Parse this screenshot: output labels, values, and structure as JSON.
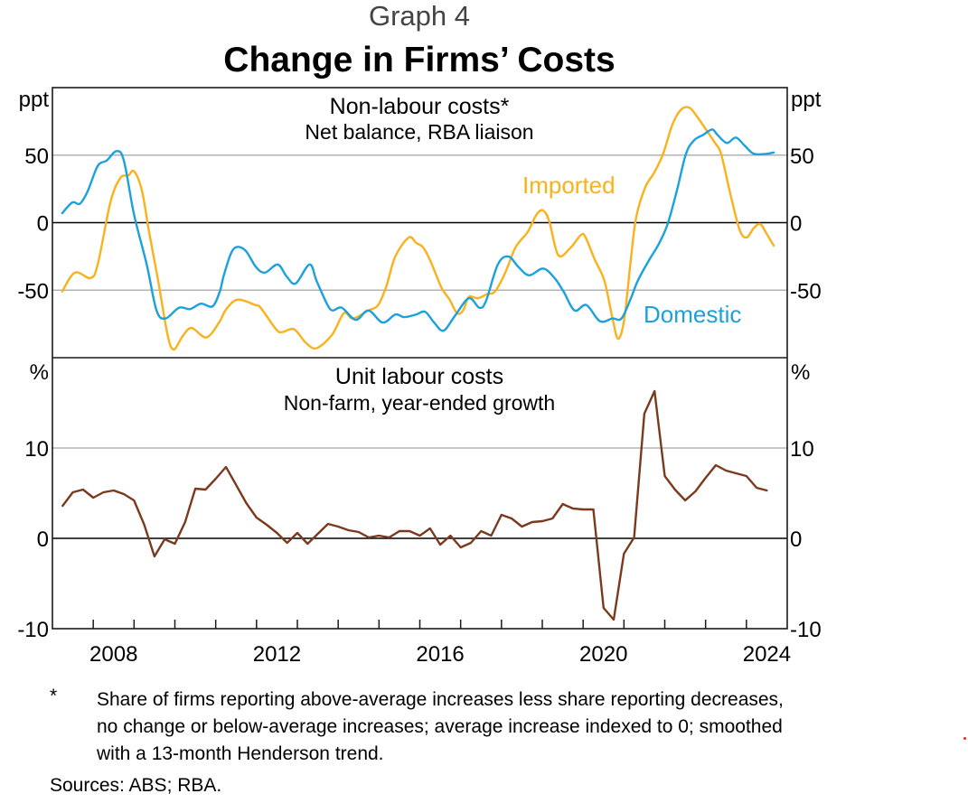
{
  "header": {
    "graph_number": "Graph 4",
    "title": "Change in Firms’ Costs"
  },
  "footnote": {
    "marker": "*",
    "text": "Share of firms reporting above-average increases less share reporting decreases, no change or below-average increases; average increase indexed to 0; smoothed with a 13-month Henderson trend."
  },
  "sources": "Sources: ABS; RBA.",
  "chart_data": [
    {
      "type": "line",
      "title": "Non-labour costs*",
      "subtitle": "Net balance, RBA liaison",
      "ylabel_left": "ppt",
      "ylabel_right": "ppt",
      "ylim": [
        -100,
        100
      ],
      "yticks": [
        50,
        0,
        -50
      ],
      "ytick_labels": [
        "50",
        "0",
        "-50"
      ],
      "xlim": [
        2007,
        2025
      ],
      "grid": true,
      "series": [
        {
          "name": "Imported",
          "color": "#f9b21b",
          "label_position": "upper-middle-right",
          "x": [
            2007.24,
            2007.55,
            2007.93,
            2008.11,
            2008.42,
            2008.66,
            2008.86,
            2009.0,
            2009.19,
            2009.37,
            2009.59,
            2009.82,
            2009.97,
            2010.19,
            2010.41,
            2010.77,
            2011.08,
            2011.26,
            2011.54,
            2011.97,
            2012.1,
            2012.48,
            2012.63,
            2012.92,
            2013.21,
            2013.47,
            2013.85,
            2014.14,
            2014.36,
            2014.74,
            2014.98,
            2015.18,
            2015.4,
            2015.73,
            2015.91,
            2016.07,
            2016.24,
            2016.53,
            2016.73,
            2016.91,
            2017.06,
            2017.2,
            2017.42,
            2017.64,
            2017.84,
            2018.08,
            2018.35,
            2018.64,
            2018.86,
            2019.02,
            2019.17,
            2019.39,
            2019.68,
            2019.95,
            2020.06,
            2020.28,
            2020.52,
            2020.72,
            2020.86,
            2021.01,
            2021.17,
            2021.3,
            2021.52,
            2021.74,
            2021.96,
            2022.19,
            2022.41,
            2022.61,
            2022.78,
            2023.01,
            2023.23,
            2023.38,
            2023.6,
            2023.83,
            2024.0,
            2024.18,
            2024.34,
            2024.49,
            2024.67
          ],
          "values": [
            -51,
            -37,
            -41,
            -31,
            15,
            33,
            35,
            38,
            24,
            -7,
            -43,
            -83,
            -94,
            -84,
            -78,
            -85,
            -74,
            -64,
            -57,
            -61,
            -63,
            -79,
            -81,
            -79,
            -89,
            -93,
            -83,
            -67,
            -71,
            -65,
            -61,
            -47,
            -25,
            -11,
            -15,
            -18,
            -27,
            -48,
            -57,
            -67,
            -65,
            -55,
            -56,
            -53,
            -51,
            -38,
            -18,
            -7,
            6,
            9,
            1,
            -24,
            -19,
            -9,
            -11,
            -27,
            -43,
            -71,
            -86,
            -71,
            -27,
            4,
            26,
            37,
            51,
            73,
            84,
            85,
            79,
            69,
            59,
            51,
            22,
            -5,
            -11,
            -4,
            -1,
            -8,
            -17
          ]
        },
        {
          "name": "Domestic",
          "color": "#1ba1db",
          "label_position": "lower-right",
          "x": [
            2007.24,
            2007.49,
            2007.67,
            2007.86,
            2008.11,
            2008.33,
            2008.57,
            2008.75,
            2009.0,
            2009.31,
            2009.55,
            2009.77,
            2010.1,
            2010.37,
            2010.64,
            2010.92,
            2011.1,
            2011.19,
            2011.37,
            2011.52,
            2011.74,
            2011.99,
            2012.21,
            2012.52,
            2012.74,
            2012.96,
            2013.3,
            2013.47,
            2013.74,
            2013.87,
            2014.09,
            2014.43,
            2014.74,
            2015.09,
            2015.4,
            2015.62,
            2015.91,
            2016.13,
            2016.35,
            2016.58,
            2016.86,
            2017.2,
            2017.46,
            2017.62,
            2017.91,
            2018.17,
            2018.42,
            2018.68,
            2019.02,
            2019.3,
            2019.52,
            2019.79,
            2020.08,
            2020.41,
            2020.72,
            2020.94,
            2021.17,
            2021.34,
            2021.61,
            2021.85,
            2022.07,
            2022.3,
            2022.52,
            2022.72,
            2022.94,
            2023.16,
            2023.29,
            2023.52,
            2023.74,
            2023.96,
            2024.18,
            2024.49,
            2024.67
          ],
          "values": [
            7,
            15,
            14,
            23,
            42,
            46,
            53,
            46,
            6,
            -31,
            -65,
            -71,
            -63,
            -64,
            -60,
            -62,
            -51,
            -40,
            -23,
            -18,
            -21,
            -33,
            -37,
            -31,
            -40,
            -45,
            -31,
            -43,
            -61,
            -65,
            -63,
            -72,
            -65,
            -74,
            -68,
            -70,
            -68,
            -66,
            -74,
            -80,
            -69,
            -56,
            -63,
            -58,
            -31,
            -25,
            -33,
            -39,
            -34,
            -41,
            -51,
            -65,
            -61,
            -73,
            -71,
            -71,
            -56,
            -43,
            -28,
            -16,
            -1,
            24,
            51,
            61,
            65,
            69,
            65,
            59,
            63,
            57,
            51,
            51,
            52
          ]
        }
      ]
    },
    {
      "type": "line",
      "title": "Unit labour costs",
      "subtitle": "Non-farm, year-ended growth",
      "ylabel_left": "%",
      "ylabel_right": "%",
      "ylim": [
        -10,
        20
      ],
      "yticks": [
        10,
        0,
        -10
      ],
      "ytick_labels": [
        "10",
        "0",
        "-10"
      ],
      "xlim": [
        2007,
        2025
      ],
      "xticks": [
        2008,
        2012,
        2016,
        2020,
        2024
      ],
      "xtick_labels": [
        "2008",
        "2012",
        "2016",
        "2020",
        "2024"
      ],
      "grid": true,
      "series": [
        {
          "name": "Unit labour costs",
          "color": "#7b3a1e",
          "x_start": 2007.25,
          "x_step": 0.25,
          "values": [
            3.6,
            5.1,
            5.4,
            4.5,
            5.1,
            5.3,
            4.9,
            4.2,
            1.5,
            -2.0,
            -0.1,
            -0.6,
            1.8,
            5.5,
            5.4,
            6.6,
            7.9,
            5.9,
            3.9,
            2.3,
            1.5,
            0.6,
            -0.5,
            0.6,
            -0.6,
            0.5,
            1.6,
            1.3,
            0.9,
            0.7,
            0.1,
            0.3,
            0.1,
            0.8,
            0.8,
            0.3,
            1.1,
            -0.7,
            0.3,
            -1.0,
            -0.5,
            0.8,
            0.3,
            2.6,
            2.2,
            1.3,
            1.8,
            1.9,
            2.2,
            3.8,
            3.3,
            3.2,
            3.2,
            -7.7,
            -9.0,
            -1.7,
            0.1,
            13.8,
            16.3,
            6.9,
            5.4,
            4.2,
            5.2,
            6.7,
            8.1,
            7.5,
            7.2,
            6.9,
            5.6,
            5.3
          ]
        }
      ]
    }
  ]
}
